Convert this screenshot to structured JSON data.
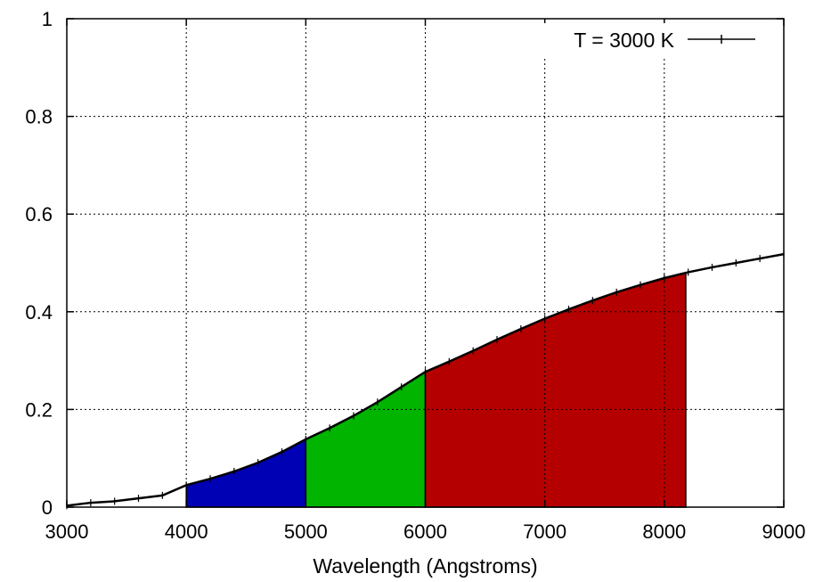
{
  "chart_data": {
    "type": "area",
    "title": "",
    "xlabel": "Wavelength (Angstroms)",
    "ylabel": "",
    "xlim": [
      3000,
      9000
    ],
    "ylim": [
      0,
      1
    ],
    "grid": true,
    "legend_position": "top-right",
    "x_ticks": [
      "3000",
      "4000",
      "5000",
      "6000",
      "7000",
      "8000",
      "9000"
    ],
    "y_ticks": [
      "0",
      "0.2",
      "0.4",
      "0.6",
      "0.8",
      "1"
    ],
    "series": [
      {
        "name": "T = 3000 K",
        "color": "#000000",
        "x": [
          3000,
          3200,
          3400,
          3600,
          3800,
          4000,
          4200,
          4400,
          4600,
          4800,
          5000,
          5200,
          5400,
          5600,
          5800,
          6000,
          6200,
          6400,
          6600,
          6800,
          7000,
          7200,
          7400,
          7600,
          7800,
          8000,
          8200,
          8400,
          8600,
          8800,
          9000
        ],
        "y": [
          0.003,
          0.009,
          0.012,
          0.018,
          0.024,
          0.045,
          0.058,
          0.073,
          0.091,
          0.113,
          0.139,
          0.162,
          0.187,
          0.215,
          0.246,
          0.277,
          0.298,
          0.32,
          0.343,
          0.365,
          0.386,
          0.405,
          0.423,
          0.44,
          0.455,
          0.469,
          0.481,
          0.491,
          0.5,
          0.509,
          0.518
        ]
      }
    ],
    "bands": [
      {
        "x_start": 4000,
        "x_end": 5000,
        "color": "#0000b4"
      },
      {
        "x_start": 5000,
        "x_end": 6000,
        "color": "#00b400"
      },
      {
        "x_start": 6000,
        "x_end": 8180,
        "color": "#b40000"
      }
    ]
  }
}
